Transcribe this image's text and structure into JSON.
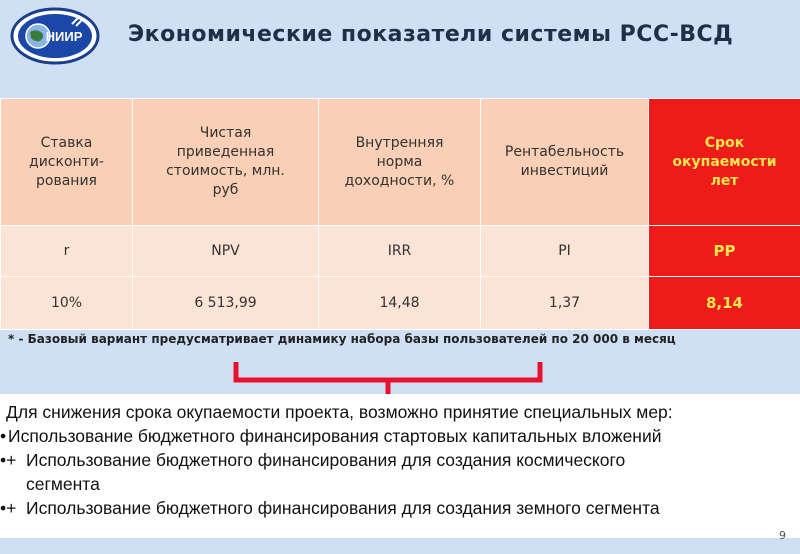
{
  "header": {
    "logo_text": "НИИР",
    "title": "Экономические показатели системы РСС-ВСД"
  },
  "table": {
    "headers": [
      [
        "Ставка",
        "дисконти-",
        "рования"
      ],
      [
        "Чистая",
        "приведенная",
        "стоимость, млн.",
        "руб"
      ],
      [
        "Внутренняя",
        "норма",
        "доходности, %"
      ],
      [
        "Рентабельность",
        "инвестиций"
      ],
      [
        "Срок",
        "окупаемости",
        "лет"
      ]
    ],
    "symbols": [
      "r",
      "NPV",
      "IRR",
      "PI",
      "PP"
    ],
    "values": [
      "10%",
      "6 513,99",
      "14,48",
      "1,37",
      "8,14"
    ],
    "highlight_color": "#ee1b1b"
  },
  "footnote": "* - Базовый вариант предусматривает динамику набора базы пользователей по 20 000 в месяц",
  "note": {
    "intro": "Для снижения срока окупаемости проекта, возможно принятие специальных мер:",
    "items": [
      {
        "marker": "•",
        "text": "Использование бюджетного финансирования стартовых капитальных вложений"
      },
      {
        "marker": "•+",
        "text": "Использование бюджетного финансирования для создания космического",
        "cont": "сегмента"
      },
      {
        "marker": "•+",
        "text": "Использование бюджетного финансирования для создания земного сегмента"
      }
    ]
  },
  "page_number": "9"
}
